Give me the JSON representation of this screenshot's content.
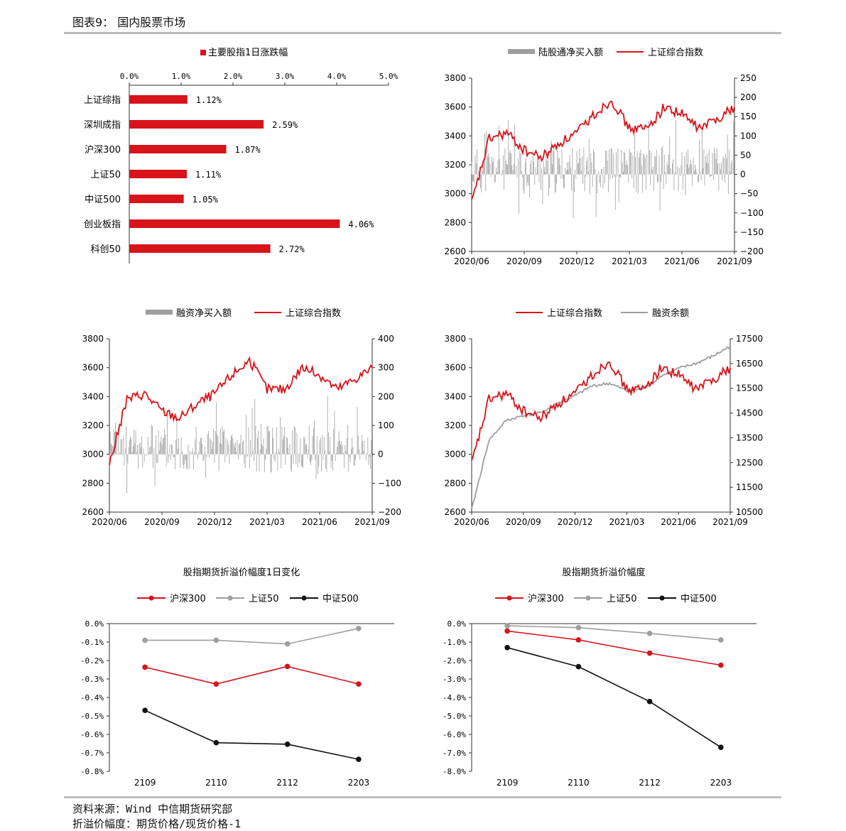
{
  "header": {
    "figure_title": "图表9： 国内股票市场"
  },
  "footer": {
    "source": "资料来源：Wind 中信期货研究部",
    "note": "折溢价幅度：期货价格/现货价格-1"
  },
  "colors": {
    "red": "#d7141a",
    "gray": "#9e9e9e",
    "black": "#111111",
    "rule": "#bdbdbd"
  },
  "chart_data": [
    {
      "type": "bar",
      "orientation": "horizontal",
      "legend": "主要股指1日涨跌幅",
      "categories": [
        "上证综指",
        "深圳成指",
        "沪深300",
        "上证50",
        "中证500",
        "创业板指",
        "科创50"
      ],
      "values": [
        1.12,
        2.59,
        1.87,
        1.11,
        1.05,
        4.06,
        2.72
      ],
      "value_labels": [
        "1.12%",
        "2.59%",
        "1.87%",
        "1.11%",
        "1.05%",
        "4.06%",
        "2.72%"
      ],
      "xlim": [
        0,
        5
      ],
      "x_ticks": [
        "0.0%",
        "1.0%",
        "2.0%",
        "3.0%",
        "4.0%",
        "5.0%"
      ],
      "legend_position": "top"
    },
    {
      "type": "line",
      "series": [
        {
          "name": "陆股通净买入额",
          "style": "bar",
          "axis": "right",
          "color": "#9e9e9e"
        },
        {
          "name": "上证综合指数",
          "style": "line",
          "axis": "left",
          "color": "#d7141a",
          "x": [
            "2020-06",
            "2020-07",
            "2020-08",
            "2020-09",
            "2020-10",
            "2020-11",
            "2020-12",
            "2021-01",
            "2021-02",
            "2021-03",
            "2021-04",
            "2021-05",
            "2021-06",
            "2021-07",
            "2021-08",
            "2021-09"
          ],
          "values": [
            2930,
            3380,
            3420,
            3300,
            3250,
            3350,
            3420,
            3550,
            3650,
            3450,
            3450,
            3600,
            3550,
            3450,
            3520,
            3600
          ]
        }
      ],
      "x_ticks": [
        "2020/06",
        "2020/09",
        "2020/12",
        "2021/03",
        "2021/06",
        "2021/09"
      ],
      "ylim_left": [
        2600,
        3800
      ],
      "y_ticks_left": [
        "2600",
        "2800",
        "3000",
        "3200",
        "3400",
        "3600",
        "3800"
      ],
      "ylim_right": [
        -200,
        250
      ],
      "y_ticks_right": [
        "−200",
        "−150",
        "−100",
        "−50",
        "0",
        "50",
        "100",
        "150",
        "200",
        "250"
      ],
      "legend_position": "top"
    },
    {
      "type": "line",
      "series": [
        {
          "name": "融资净买入额",
          "style": "bar",
          "axis": "right",
          "color": "#9e9e9e"
        },
        {
          "name": "上证综合指数",
          "style": "line",
          "axis": "left",
          "color": "#d7141a",
          "x": [
            "2020-06",
            "2020-07",
            "2020-08",
            "2020-09",
            "2020-10",
            "2020-11",
            "2020-12",
            "2021-01",
            "2021-02",
            "2021-03",
            "2021-04",
            "2021-05",
            "2021-06",
            "2021-07",
            "2021-08",
            "2021-09"
          ],
          "values": [
            2930,
            3380,
            3420,
            3300,
            3250,
            3350,
            3420,
            3550,
            3650,
            3450,
            3450,
            3600,
            3550,
            3450,
            3520,
            3600
          ]
        }
      ],
      "x_ticks": [
        "2020/06",
        "2020/09",
        "2020/12",
        "2021/03",
        "2021/06",
        "2021/09"
      ],
      "ylim_left": [
        2600,
        3800
      ],
      "y_ticks_left": [
        "2600",
        "2800",
        "3000",
        "3200",
        "3400",
        "3600",
        "3800"
      ],
      "ylim_right": [
        -200,
        400
      ],
      "y_ticks_right": [
        "−200",
        "−100",
        "0",
        "100",
        "200",
        "300",
        "400"
      ],
      "legend_position": "top"
    },
    {
      "type": "line",
      "series": [
        {
          "name": "上证综合指数",
          "axis": "left",
          "color": "#d7141a",
          "x": [
            "2020-06",
            "2020-07",
            "2020-08",
            "2020-09",
            "2020-10",
            "2020-11",
            "2020-12",
            "2021-01",
            "2021-02",
            "2021-03",
            "2021-04",
            "2021-05",
            "2021-06",
            "2021-07",
            "2021-08",
            "2021-09"
          ],
          "values": [
            2930,
            3380,
            3420,
            3300,
            3250,
            3350,
            3420,
            3550,
            3650,
            3450,
            3450,
            3600,
            3550,
            3450,
            3520,
            3600
          ]
        },
        {
          "name": "融资余额",
          "axis": "right",
          "color": "#9e9e9e",
          "x": [
            "2020-06",
            "2020-07",
            "2020-08",
            "2020-09",
            "2020-10",
            "2020-11",
            "2020-12",
            "2021-01",
            "2021-02",
            "2021-03",
            "2021-04",
            "2021-05",
            "2021-06",
            "2021-07",
            "2021-08",
            "2021-09"
          ],
          "values": [
            10600,
            13400,
            14200,
            14400,
            14500,
            14900,
            15200,
            15600,
            15700,
            15400,
            15500,
            16000,
            16300,
            16500,
            16800,
            17200
          ]
        }
      ],
      "x_ticks": [
        "2020/06",
        "2020/09",
        "2020/12",
        "2021/03",
        "2021/06",
        "2021/09"
      ],
      "ylim_left": [
        2600,
        3800
      ],
      "y_ticks_left": [
        "2600",
        "2800",
        "3000",
        "3200",
        "3400",
        "3600",
        "3800"
      ],
      "ylim_right": [
        10500,
        17500
      ],
      "y_ticks_right": [
        "10500",
        "11500",
        "12500",
        "13500",
        "14500",
        "15500",
        "16500",
        "17500"
      ],
      "legend_position": "top"
    },
    {
      "type": "line",
      "title": "股指期货折溢价幅度1日变化",
      "categories": [
        "2109",
        "2110",
        "2112",
        "2203"
      ],
      "series": [
        {
          "name": "沪深300",
          "color": "#d7141a",
          "values": [
            -0.236,
            -0.327,
            -0.232,
            -0.327
          ]
        },
        {
          "name": "上证50",
          "color": "#9e9e9e",
          "values": [
            -0.09,
            -0.09,
            -0.11,
            -0.026
          ]
        },
        {
          "name": "中证500",
          "color": "#111111",
          "values": [
            -0.47,
            -0.645,
            -0.653,
            -0.735
          ]
        }
      ],
      "ylim": [
        -0.8,
        0
      ],
      "y_ticks": [
        "0.0%",
        "-0.1%",
        "-0.2%",
        "-0.3%",
        "-0.4%",
        "-0.5%",
        "-0.6%",
        "-0.7%",
        "-0.8%"
      ],
      "legend_position": "top"
    },
    {
      "type": "line",
      "title": "股指期货折溢价幅度",
      "categories": [
        "2109",
        "2110",
        "2112",
        "2203"
      ],
      "series": [
        {
          "name": "沪深300",
          "color": "#d7141a",
          "values": [
            -0.4,
            -0.88,
            -1.6,
            -2.25
          ]
        },
        {
          "name": "上证50",
          "color": "#9e9e9e",
          "values": [
            -0.12,
            -0.22,
            -0.53,
            -0.88
          ]
        },
        {
          "name": "中证500",
          "color": "#111111",
          "values": [
            -1.3,
            -2.33,
            -4.22,
            -6.7
          ]
        }
      ],
      "ylim": [
        -8,
        0
      ],
      "y_ticks": [
        "0.0%",
        "-1.0%",
        "-2.0%",
        "-3.0%",
        "-4.0%",
        "-5.0%",
        "-6.0%",
        "-7.0%",
        "-8.0%"
      ],
      "legend_position": "top"
    }
  ]
}
